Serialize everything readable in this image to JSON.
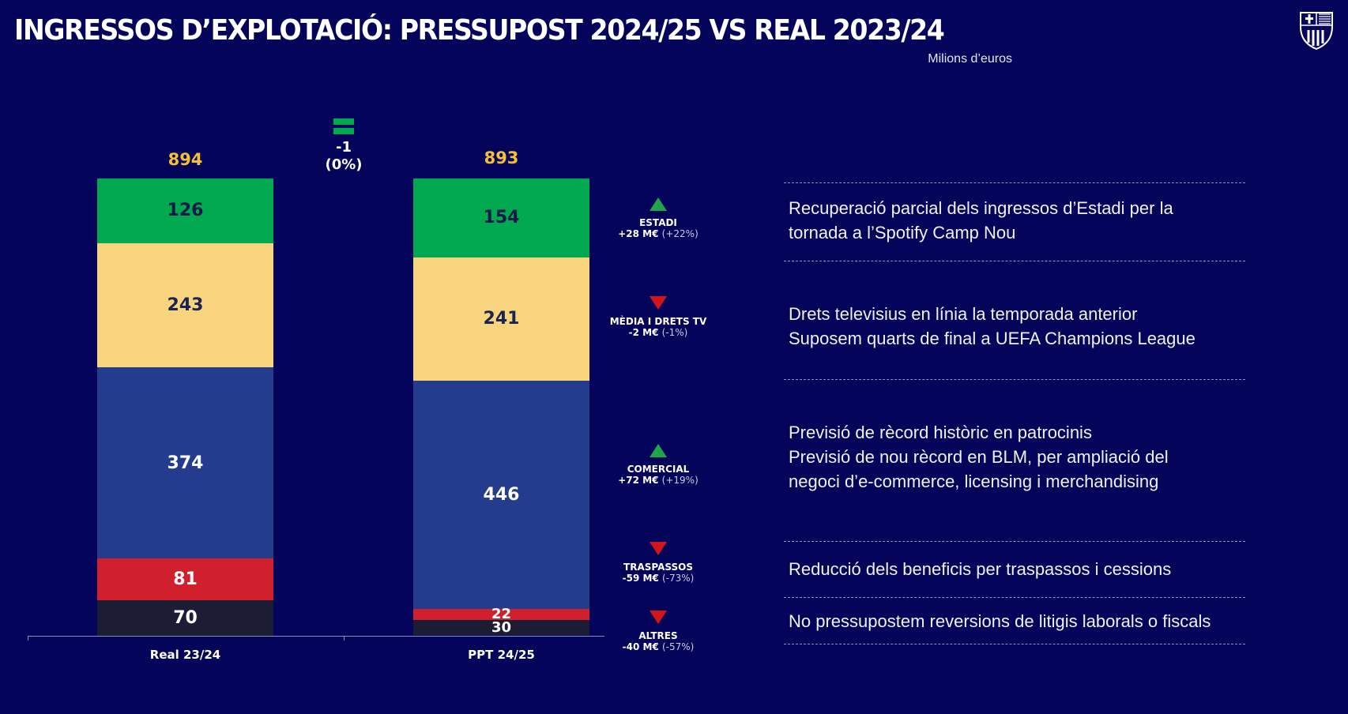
{
  "header": {
    "title": "INGRESSOS D’EXPLOTACIÓ: PRESSUPOST 2024/25 VS REAL 2023/24",
    "unit": "Milions d’euros",
    "logo_text": "FCB"
  },
  "colors": {
    "background": "#03045a",
    "Estadi": "#00a850",
    "Mèdia i drets TV": "#f8d47e",
    "Comercial": "#243c8e",
    "Traspassos": "#d0202e",
    "Altres": "#1c1c34",
    "total": "#f5bf3a",
    "up": "#1fa64a",
    "down": "#d3141b"
  },
  "chart_data": {
    "type": "bar",
    "stacked": true,
    "categories": [
      "Real 23/24",
      "PPT 24/25"
    ],
    "totals": [
      "894",
      "893"
    ],
    "series": [
      {
        "name": "Estadi",
        "values": [
          126,
          154
        ]
      },
      {
        "name": "Mèdia i drets TV",
        "values": [
          243,
          241
        ]
      },
      {
        "name": "Comercial",
        "values": [
          374,
          446
        ]
      },
      {
        "name": "Traspassos",
        "values": [
          81,
          22
        ]
      },
      {
        "name": "Altres",
        "values": [
          70,
          30
        ]
      }
    ],
    "difference": {
      "value": "-1",
      "pct": "(0%)",
      "icon": "equals-icon"
    },
    "ylim": [
      0,
      894
    ],
    "grid": false
  },
  "annotations": [
    {
      "direction": "up",
      "label": "ESTADI",
      "delta": "+28 M€",
      "pct": "(+22%)"
    },
    {
      "direction": "down",
      "label": "MÈDIA I DRETS TV",
      "delta": "-2 M€",
      "pct": "(-1%)"
    },
    {
      "direction": "up",
      "label": "COMERCIAL",
      "delta": "+72 M€",
      "pct": "(+19%)"
    },
    {
      "direction": "down",
      "label": "TRASPASSOS",
      "delta": "-59 M€",
      "pct": "(-73%)"
    },
    {
      "direction": "down",
      "label": "ALTRES",
      "delta": "-40 M€",
      "pct": "(-57%)"
    }
  ],
  "notes": [
    [
      "Recuperació parcial dels ingressos d’Estadi per la",
      "tornada a l’Spotify Camp Nou"
    ],
    [
      "Drets televisius en línia la temporada anterior",
      "Suposem quarts de final a UEFA Champions League"
    ],
    [
      "Previsió de rècord històric en patrocinis",
      "Previsió de nou rècord en BLM, per ampliació del",
      "negoci d’e-commerce, licensing i merchandising"
    ],
    [
      "Reducció dels beneficis per traspassos i cessions"
    ],
    [
      "No pressupostem reversions de litigis laborals o fiscals"
    ]
  ]
}
